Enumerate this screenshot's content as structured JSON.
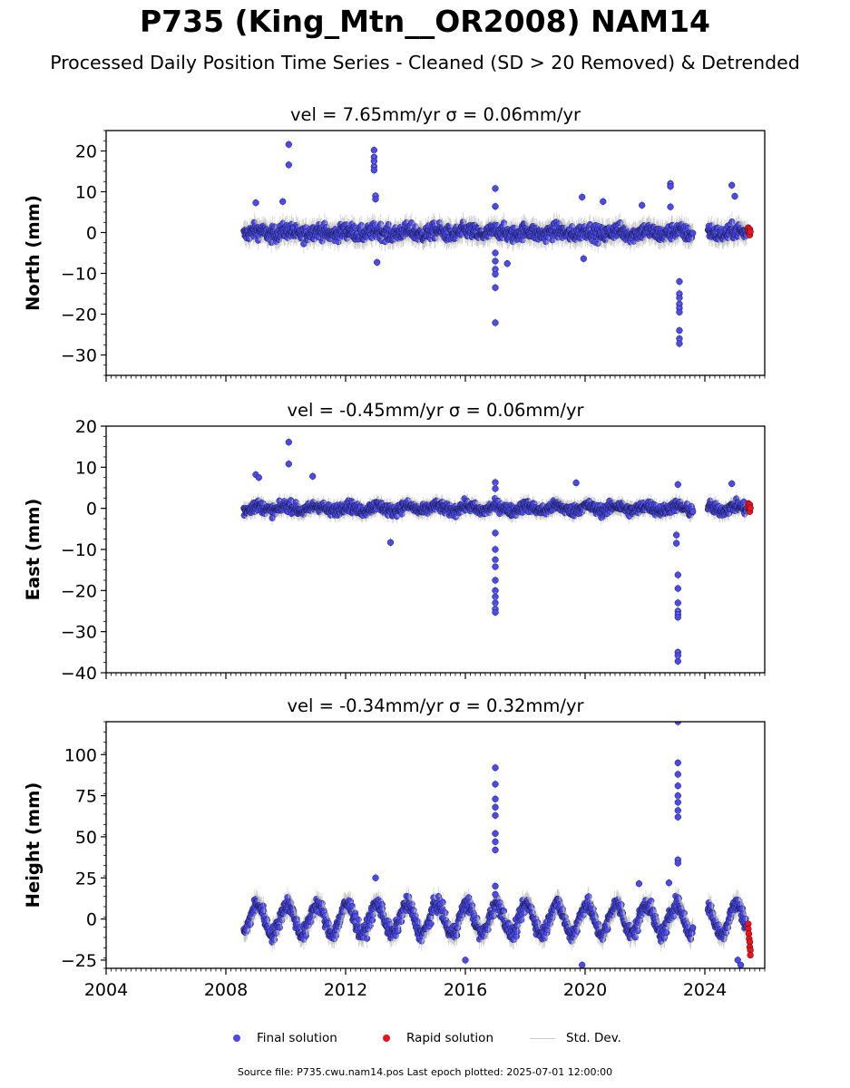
{
  "header": {
    "title": "P735 (King_Mtn__OR2008) NAM14",
    "subtitle": "Processed Daily Position Time Series - Cleaned (SD > 20 Removed) & Detrended"
  },
  "footer": {
    "text": "Source file: P735.cwu.nam14.pos  Last epoch plotted: 2025-07-01 12:00:00"
  },
  "legend": {
    "final": "Final solution",
    "rapid": "Rapid solution",
    "stddev": "Std. Dev."
  },
  "colors": {
    "final": "#4a4af0",
    "rapid": "#e8141e",
    "stddev": "#bbbbbb"
  },
  "chart_data": [
    {
      "type": "scatter",
      "title": "vel = 7.65mm/yr   σ = 0.06mm/yr",
      "ylabel": "North (mm)",
      "xlim": [
        2004,
        2026
      ],
      "ylim": [
        -35,
        25
      ],
      "yticks": [
        -30,
        -20,
        -10,
        0,
        10,
        20
      ],
      "xticks": [
        2004,
        2008,
        2012,
        2016,
        2020,
        2024
      ],
      "show_xtick_labels": false,
      "data_span": [
        2008.6,
        2025.5
      ],
      "gaps": [
        [
          2023.6,
          2024.1
        ]
      ],
      "base_noise": 2.2,
      "seasonal_amp": 0.5,
      "final_points": [
        [
          2009.0,
          7.3
        ],
        [
          2009.9,
          7.6
        ],
        [
          2010.1,
          21.6
        ],
        [
          2010.1,
          16.6
        ],
        [
          2012.95,
          20.2
        ],
        [
          2012.95,
          18.5
        ],
        [
          2012.95,
          17.5
        ],
        [
          2012.95,
          16.2
        ],
        [
          2012.95,
          15.3
        ],
        [
          2013.0,
          9.0
        ],
        [
          2013.0,
          8.2
        ],
        [
          2013.05,
          -7.3
        ],
        [
          2017.0,
          10.8
        ],
        [
          2017.0,
          6.4
        ],
        [
          2017.0,
          -5.0
        ],
        [
          2017.0,
          -7.0
        ],
        [
          2017.0,
          -9.0
        ],
        [
          2017.0,
          -10.2
        ],
        [
          2017.0,
          -13.5
        ],
        [
          2017.0,
          -22.1
        ],
        [
          2017.4,
          -7.6
        ],
        [
          2019.9,
          8.7
        ],
        [
          2019.95,
          -6.4
        ],
        [
          2020.6,
          7.6
        ],
        [
          2021.9,
          6.7
        ],
        [
          2022.85,
          12.0
        ],
        [
          2022.85,
          11.3
        ],
        [
          2022.85,
          6.3
        ],
        [
          2023.15,
          -12.0
        ],
        [
          2023.15,
          -15.0
        ],
        [
          2023.15,
          -16.0
        ],
        [
          2023.15,
          -17.5
        ],
        [
          2023.15,
          -18.5
        ],
        [
          2023.15,
          -19.5
        ],
        [
          2023.15,
          -24.0
        ],
        [
          2023.15,
          -26.0
        ],
        [
          2023.15,
          -27.2
        ],
        [
          2024.9,
          11.6
        ],
        [
          2025.0,
          8.9
        ]
      ],
      "rapid_points": [
        [
          2025.45,
          1.2
        ],
        [
          2025.45,
          0.5
        ],
        [
          2025.48,
          -0.2
        ],
        [
          2025.5,
          0.8
        ],
        [
          2025.5,
          -0.6
        ],
        [
          2025.52,
          0.2
        ]
      ]
    },
    {
      "type": "scatter",
      "title": "vel = -0.45mm/yr   σ = 0.06mm/yr",
      "ylabel": "East (mm)",
      "xlim": [
        2004,
        2026
      ],
      "ylim": [
        -40,
        20
      ],
      "yticks": [
        -40,
        -30,
        -20,
        -10,
        0,
        10,
        20
      ],
      "xticks": [
        2004,
        2008,
        2012,
        2016,
        2020,
        2024
      ],
      "show_xtick_labels": false,
      "data_span": [
        2008.6,
        2025.5
      ],
      "gaps": [
        [
          2023.6,
          2024.1
        ]
      ],
      "base_noise": 1.6,
      "seasonal_amp": 0.6,
      "final_points": [
        [
          2009.0,
          8.2
        ],
        [
          2009.1,
          7.5
        ],
        [
          2010.1,
          16.1
        ],
        [
          2010.1,
          10.8
        ],
        [
          2010.9,
          7.8
        ],
        [
          2013.5,
          -8.3
        ],
        [
          2017.0,
          6.3
        ],
        [
          2017.0,
          4.8
        ],
        [
          2017.0,
          -6.0
        ],
        [
          2017.0,
          -10.0
        ],
        [
          2017.0,
          -12.5
        ],
        [
          2017.0,
          -14.2
        ],
        [
          2017.0,
          -17.5
        ],
        [
          2017.0,
          -20.0
        ],
        [
          2017.0,
          -21.5
        ],
        [
          2017.0,
          -23.0
        ],
        [
          2017.0,
          -24.5
        ],
        [
          2017.0,
          -25.3
        ],
        [
          2019.7,
          6.2
        ],
        [
          2023.05,
          -6.5
        ],
        [
          2023.05,
          -8.5
        ],
        [
          2023.1,
          -16.2
        ],
        [
          2023.1,
          -19.5
        ],
        [
          2023.1,
          -23.0
        ],
        [
          2023.1,
          -25.0
        ],
        [
          2023.1,
          -25.8
        ],
        [
          2023.1,
          -26.5
        ],
        [
          2023.1,
          -35.0
        ],
        [
          2023.1,
          -35.8
        ],
        [
          2023.1,
          -37.2
        ],
        [
          2023.1,
          5.8
        ],
        [
          2024.9,
          6.0
        ]
      ],
      "rapid_points": [
        [
          2025.45,
          1.2
        ],
        [
          2025.45,
          0.4
        ],
        [
          2025.48,
          -0.3
        ],
        [
          2025.5,
          0.9
        ],
        [
          2025.5,
          -0.8
        ],
        [
          2025.52,
          0.1
        ]
      ]
    },
    {
      "type": "scatter",
      "title": "vel = -0.34mm/yr   σ = 0.32mm/yr",
      "ylabel": "Height (mm)",
      "xlim": [
        2004,
        2026
      ],
      "ylim": [
        -30,
        120
      ],
      "yticks": [
        -25,
        0,
        25,
        50,
        75,
        100
      ],
      "xticks": [
        2004,
        2008,
        2012,
        2016,
        2020,
        2024
      ],
      "show_xtick_labels": true,
      "data_span": [
        2008.6,
        2025.5
      ],
      "gaps": [
        [
          2023.6,
          2024.1
        ]
      ],
      "base_noise": 5.5,
      "seasonal_amp": 9,
      "final_points": [
        [
          2013.0,
          25.0
        ],
        [
          2017.0,
          92.0
        ],
        [
          2017.0,
          82.0
        ],
        [
          2017.0,
          73.0
        ],
        [
          2017.0,
          68.0
        ],
        [
          2017.0,
          63.0
        ],
        [
          2017.0,
          52.0
        ],
        [
          2017.0,
          47.0
        ],
        [
          2017.0,
          42.0
        ],
        [
          2017.0,
          20.0
        ],
        [
          2017.0,
          15.0
        ],
        [
          2023.1,
          120.0
        ],
        [
          2023.1,
          95.0
        ],
        [
          2023.1,
          88.0
        ],
        [
          2023.1,
          81.0
        ],
        [
          2023.1,
          75.0
        ],
        [
          2023.1,
          71.0
        ],
        [
          2023.1,
          66.0
        ],
        [
          2023.1,
          62.0
        ],
        [
          2023.1,
          36.0
        ],
        [
          2023.1,
          34.0
        ],
        [
          2022.8,
          22.0
        ],
        [
          2021.8,
          21.5
        ],
        [
          2016.0,
          -25.0
        ],
        [
          2019.9,
          -28.0
        ],
        [
          2025.1,
          -25.0
        ],
        [
          2025.2,
          -28.0
        ]
      ],
      "rapid_points": [
        [
          2025.45,
          -3.0
        ],
        [
          2025.45,
          -6.0
        ],
        [
          2025.47,
          -9.0
        ],
        [
          2025.48,
          -12.0
        ],
        [
          2025.5,
          -14.0
        ],
        [
          2025.5,
          -17.0
        ],
        [
          2025.52,
          -19.0
        ],
        [
          2025.52,
          -22.0
        ]
      ]
    }
  ]
}
